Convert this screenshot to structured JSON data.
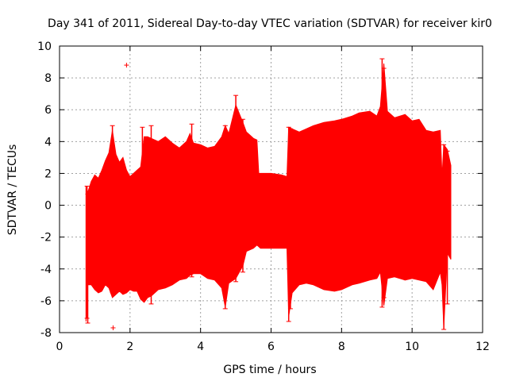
{
  "chart_data": {
    "type": "line",
    "title": "Day 341 of 2011, Sidereal Day-to-day VTEC variation (SDTVAR) for receiver kir0",
    "xlabel": "GPS time / hours",
    "ylabel": "SDTVAR / TECUs",
    "xlim": [
      0,
      12
    ],
    "ylim": [
      -8,
      10
    ],
    "x_ticks": [
      0,
      2,
      4,
      6,
      8,
      10,
      12
    ],
    "y_ticks": [
      -8,
      -6,
      -4,
      -2,
      0,
      2,
      4,
      6,
      8,
      10
    ],
    "grid": true,
    "series_color": "#ff0000",
    "envelope": {
      "x": [
        0.75,
        0.8,
        0.9,
        1.0,
        1.1,
        1.2,
        1.3,
        1.4,
        1.5,
        1.6,
        1.7,
        1.8,
        1.9,
        2.0,
        2.1,
        2.2,
        2.3,
        2.4,
        2.5,
        2.6,
        2.8,
        3.0,
        3.2,
        3.4,
        3.6,
        3.7,
        3.8,
        4.0,
        4.2,
        4.4,
        4.6,
        4.7,
        4.8,
        5.0,
        5.2,
        5.3,
        5.4,
        5.5,
        5.6,
        5.65,
        5.7,
        6.0,
        6.3,
        6.45,
        6.5,
        6.6,
        6.8,
        7.0,
        7.2,
        7.5,
        7.8,
        8.0,
        8.3,
        8.5,
        8.8,
        9.0,
        9.1,
        9.2,
        9.3,
        9.5,
        9.8,
        10.0,
        10.2,
        10.4,
        10.6,
        10.8,
        10.85,
        10.9,
        11.0,
        11.1
      ],
      "upper": [
        1.2,
        0.8,
        1.5,
        1.9,
        1.7,
        2.2,
        2.8,
        3.3,
        4.7,
        3.2,
        2.7,
        3.0,
        2.2,
        1.8,
        2.0,
        2.2,
        2.4,
        4.3,
        4.3,
        4.2,
        4.0,
        4.3,
        3.9,
        3.6,
        4.0,
        4.5,
        3.9,
        3.8,
        3.6,
        3.7,
        4.3,
        5.0,
        4.5,
        6.3,
        5.2,
        4.6,
        4.4,
        4.2,
        4.1,
        2.0,
        2.0,
        2.0,
        1.9,
        1.8,
        4.9,
        4.8,
        4.6,
        4.8,
        5.0,
        5.2,
        5.3,
        5.4,
        5.6,
        5.8,
        5.9,
        5.6,
        6.2,
        8.9,
        5.9,
        5.5,
        5.7,
        5.3,
        5.4,
        4.7,
        4.6,
        4.7,
        1.8,
        3.8,
        3.5,
        2.5
      ],
      "lower": [
        -7.3,
        -5.0,
        -5.0,
        -5.3,
        -5.5,
        -5.4,
        -5.0,
        -5.2,
        -5.8,
        -5.6,
        -5.4,
        -5.6,
        -5.5,
        -5.3,
        -5.4,
        -5.4,
        -5.9,
        -6.1,
        -5.8,
        -5.7,
        -5.3,
        -5.2,
        -5.0,
        -4.7,
        -4.6,
        -4.4,
        -4.3,
        -4.3,
        -4.6,
        -4.7,
        -5.2,
        -6.4,
        -4.9,
        -4.6,
        -3.8,
        -2.9,
        -2.8,
        -2.7,
        -2.5,
        -2.6,
        -2.7,
        -2.7,
        -2.7,
        -2.7,
        -7.0,
        -5.5,
        -5.0,
        -4.9,
        -5.0,
        -5.3,
        -5.4,
        -5.3,
        -5.0,
        -4.9,
        -4.7,
        -4.6,
        -4.2,
        -6.3,
        -4.6,
        -4.5,
        -4.7,
        -4.6,
        -4.7,
        -4.8,
        -5.3,
        -4.2,
        -5.0,
        -7.7,
        -3.0,
        -3.4
      ]
    },
    "spikes": [
      {
        "x": 0.78,
        "y_from": -7.1,
        "y_to": 1.2
      },
      {
        "x": 0.8,
        "y_from": -7.4,
        "y_to": 0.7
      },
      {
        "x": 1.5,
        "y_from": -5.5,
        "y_to": 5.0
      },
      {
        "x": 2.35,
        "y_from": -5.0,
        "y_to": 4.9
      },
      {
        "x": 2.6,
        "y_from": -6.2,
        "y_to": 5.0
      },
      {
        "x": 3.75,
        "y_from": -4.5,
        "y_to": 5.1
      },
      {
        "x": 4.7,
        "y_from": -6.5,
        "y_to": 5.0
      },
      {
        "x": 5.0,
        "y_from": -4.8,
        "y_to": 6.9
      },
      {
        "x": 5.2,
        "y_from": -4.2,
        "y_to": 5.4
      },
      {
        "x": 6.5,
        "y_from": -7.3,
        "y_to": 4.9
      },
      {
        "x": 6.55,
        "y_from": -6.5,
        "y_to": 4.8
      },
      {
        "x": 9.15,
        "y_from": -6.4,
        "y_to": 9.2
      },
      {
        "x": 9.2,
        "y_from": -5.8,
        "y_to": 8.6
      },
      {
        "x": 10.9,
        "y_from": -7.8,
        "y_to": 3.8
      },
      {
        "x": 11.0,
        "y_from": -6.2,
        "y_to": 3.4
      }
    ],
    "outlier_points": [
      {
        "x": 1.9,
        "y": 8.8
      },
      {
        "x": 1.52,
        "y": -7.7
      }
    ]
  }
}
